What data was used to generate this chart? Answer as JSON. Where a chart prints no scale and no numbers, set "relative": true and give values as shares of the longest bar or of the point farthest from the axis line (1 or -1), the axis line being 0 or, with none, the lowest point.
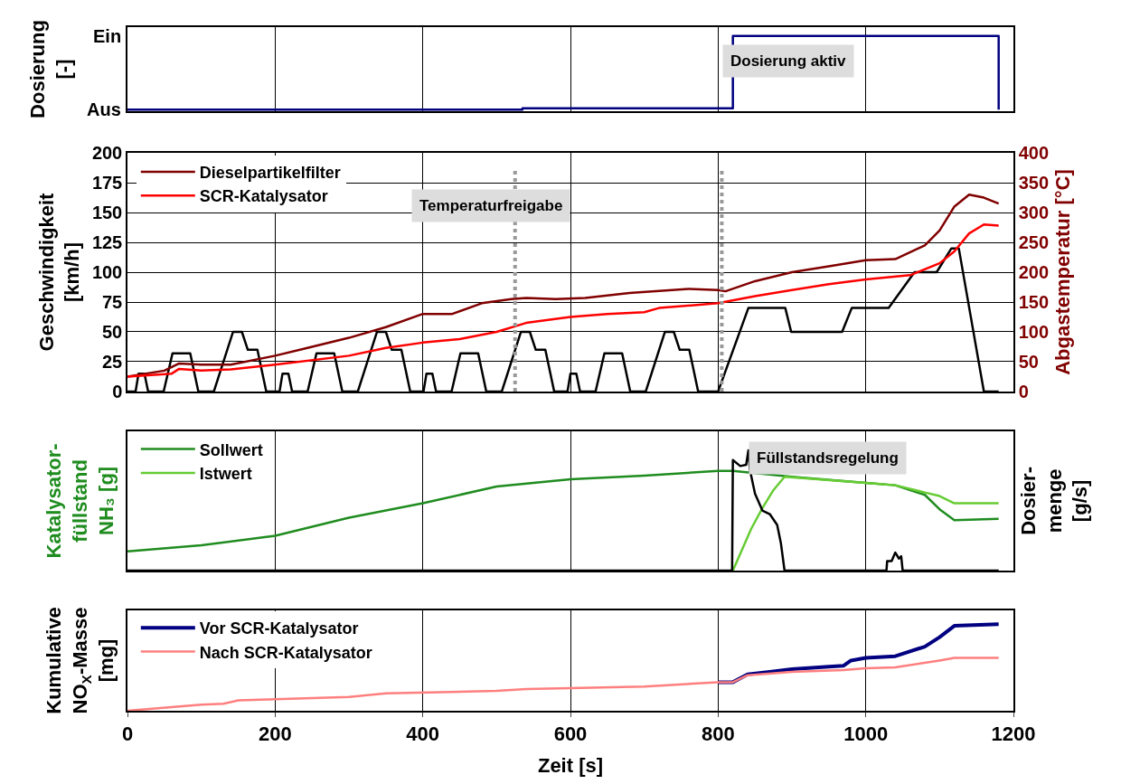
{
  "chart_data": [
    {
      "type": "step",
      "ylabel": "Dosierung\n[-]",
      "xlim": [
        0,
        1200
      ],
      "xticks": [
        {
          "value": 0,
          "label": null
        },
        {
          "value": 200,
          "label": null
        },
        {
          "value": 400,
          "label": null
        },
        {
          "value": 600,
          "label": null
        },
        {
          "value": 800,
          "label": null
        },
        {
          "value": 1000,
          "label": null
        },
        {
          "value": 1200,
          "label": null
        }
      ],
      "relative": true,
      "tick_labels": false,
      "grid": "x",
      "legend": false,
      "series": [
        {
          "color": "#000080",
          "x": [
            0,
            535,
            820,
            1180
          ],
          "values": [
            0,
            0.02,
            1,
            0
          ]
        }
      ],
      "annotations": [
        "Dosierung aktiv",
        "Aus",
        "Ein"
      ]
    },
    {
      "type": "line",
      "ylabel": "Geschwindigkeit\n[km/h]",
      "y2label": "Abgastemperatur [°C]",
      "xlim": [
        0,
        1200
      ],
      "xticks": [
        {
          "value": 0,
          "label": null
        },
        {
          "value": 200,
          "label": null
        },
        {
          "value": 400,
          "label": null
        },
        {
          "value": 600,
          "label": null
        },
        {
          "value": 800,
          "label": null
        },
        {
          "value": 1000,
          "label": null
        },
        {
          "value": 1200,
          "label": null
        }
      ],
      "ylim": [
        0,
        200
      ],
      "yticks": [
        0,
        25,
        50,
        75,
        100,
        125,
        150,
        175,
        200
      ],
      "y2lim": [
        0,
        400
      ],
      "y2ticks": [
        0,
        50,
        100,
        150,
        200,
        250,
        300,
        350,
        400
      ],
      "tick_labels": "y",
      "grid": true,
      "legend": "top left",
      "series": [
        {
          "color": "#000000",
          "x": [
            0,
            11,
            15,
            23,
            28,
            49,
            61,
            85,
            96,
            117,
            143,
            155,
            163,
            176,
            188,
            195,
            206,
            210,
            218,
            223,
            244,
            256,
            280,
            291,
            312,
            338,
            350,
            358,
            371,
            383,
            390,
            401,
            405,
            413,
            418,
            439,
            451,
            475,
            486,
            507,
            533,
            545,
            553,
            566,
            578,
            585,
            596,
            600,
            608,
            613,
            634,
            646,
            670,
            681,
            702,
            728,
            740,
            748,
            761,
            773,
            800,
            841,
            870,
            891,
            899,
            968,
            981,
            1031,
            1066,
            1096,
            1116,
            1126,
            1160,
            1180
          ],
          "values": [
            0,
            0,
            15,
            15,
            0,
            0,
            32,
            32,
            0,
            0,
            50,
            50,
            35,
            35,
            0,
            0,
            0,
            15,
            15,
            0,
            0,
            32,
            32,
            0,
            0,
            50,
            50,
            35,
            35,
            0,
            0,
            0,
            15,
            15,
            0,
            0,
            32,
            32,
            0,
            0,
            50,
            50,
            35,
            35,
            0,
            0,
            0,
            15,
            15,
            0,
            0,
            32,
            32,
            0,
            0,
            50,
            50,
            35,
            35,
            0,
            0,
            70,
            70,
            70,
            50,
            50,
            70,
            70,
            100,
            100,
            120,
            120,
            0,
            0
          ]
        },
        {
          "name": "Dieselpartikelfilter",
          "color": "#800000",
          "axis": "y2",
          "x": [
            0,
            50,
            70,
            100,
            140,
            200,
            240,
            300,
            350,
            400,
            440,
            480,
            520,
            540,
            580,
            620,
            680,
            760,
            800,
            810,
            850,
            900,
            950,
            1000,
            1040,
            1080,
            1100,
            1120,
            1140,
            1160,
            1180
          ],
          "values": [
            25,
            35,
            47,
            45,
            45,
            60,
            72,
            90,
            108,
            130,
            130,
            148,
            155,
            157,
            155,
            157,
            165,
            172,
            170,
            168,
            185,
            200,
            210,
            220,
            222,
            245,
            270,
            310,
            330,
            325,
            315
          ]
        },
        {
          "name": "SCR-Katalysator",
          "color": "#ff0000",
          "axis": "y2",
          "x": [
            0,
            60,
            70,
            100,
            140,
            200,
            300,
            350,
            400,
            450,
            500,
            540,
            600,
            650,
            700,
            720,
            800,
            850,
            900,
            950,
            1000,
            1060,
            1100,
            1120,
            1140,
            1160,
            1180
          ],
          "values": [
            25,
            30,
            38,
            35,
            37,
            45,
            60,
            73,
            82,
            88,
            100,
            115,
            125,
            130,
            133,
            140,
            148,
            160,
            170,
            180,
            188,
            195,
            215,
            235,
            265,
            280,
            278
          ]
        }
      ],
      "ref_lines": [
        {
          "axis": "x",
          "value": 525,
          "color": "#999999",
          "line_style": "dotted"
        },
        {
          "axis": "x",
          "value": 805,
          "color": "#999999",
          "line_style": "dotted"
        }
      ],
      "annotations": [
        "Temperaturfreigabe"
      ]
    },
    {
      "type": "line",
      "relative": true,
      "ylabel": "Katalysator-\nfüllstand\nNH₃ [g]",
      "y2label": "Dosier-\nmenge\n[g/s]",
      "xlim": [
        0,
        1200
      ],
      "xticks": [
        {
          "value": 0,
          "label": null
        },
        {
          "value": 200,
          "label": null
        },
        {
          "value": 400,
          "label": null
        },
        {
          "value": 600,
          "label": null
        },
        {
          "value": 800,
          "label": null
        },
        {
          "value": 1000,
          "label": null
        },
        {
          "value": 1200,
          "label": null
        }
      ],
      "tick_labels": false,
      "grid": "x",
      "legend": "top left",
      "series": [
        {
          "color": "#000000",
          "axis": "y2",
          "x": [
            0,
            819,
            820,
            830,
            838,
            841,
            843,
            850,
            860,
            870,
            880,
            885,
            890,
            1028,
            1029,
            1035,
            1040,
            1045,
            1048,
            1050,
            1180
          ],
          "values": [
            0,
            0,
            0.92,
            0.87,
            0.88,
            1,
            0.84,
            0.64,
            0.5,
            0.47,
            0.38,
            0.23,
            0,
            0,
            0.08,
            0.08,
            0.15,
            0.1,
            0.12,
            0,
            0
          ]
        },
        {
          "name": "Sollwert",
          "color": "#1f8c1f",
          "x": [
            0,
            100,
            200,
            300,
            400,
            500,
            600,
            700,
            800,
            820,
            900,
            1000,
            1040,
            1080,
            1100,
            1120,
            1180
          ],
          "values": [
            0.16,
            0.21,
            0.29,
            0.44,
            0.56,
            0.7,
            0.76,
            0.79,
            0.83,
            0.83,
            0.78,
            0.73,
            0.71,
            0.63,
            0.51,
            0.42,
            0.43
          ]
        },
        {
          "name": "Istwert",
          "color": "#66cc33",
          "x": [
            820,
            845,
            860,
            875,
            890,
            1000,
            1040,
            1080,
            1100,
            1120,
            1180
          ],
          "values": [
            0,
            0.35,
            0.52,
            0.67,
            0.78,
            0.73,
            0.71,
            0.65,
            0.62,
            0.56,
            0.56
          ]
        }
      ],
      "annotations": [
        "Füllstandsregelung"
      ]
    },
    {
      "type": "line",
      "relative": true,
      "ylabel": "Kumulative\nNO$_{X}$-Masse\n[mg]",
      "xlabel": "Zeit [s]",
      "xlim": [
        0,
        1200
      ],
      "xticks": [
        0,
        200,
        400,
        600,
        800,
        1000,
        1200
      ],
      "tick_labels": "x",
      "grid": "x",
      "legend": "top left",
      "series": [
        {
          "name": "Vor SCR-Katalysator",
          "color": "#000080",
          "x": [
            800,
            820,
            840,
            870,
            900,
            950,
            970,
            980,
            1000,
            1040,
            1080,
            1100,
            1120,
            1180
          ],
          "values": [
            0.33,
            0.33,
            0.42,
            0.45,
            0.48,
            0.51,
            0.52,
            0.58,
            0.61,
            0.63,
            0.74,
            0.85,
            0.98,
            1
          ]
        },
        {
          "name": "Nach SCR-Katalysator",
          "color": "#ff7f7f",
          "x": [
            0,
            100,
            130,
            150,
            300,
            350,
            500,
            540,
            700,
            800,
            820,
            840,
            900,
            970,
            1000,
            1040,
            1100,
            1120,
            1180
          ],
          "values": [
            0,
            0.07,
            0.08,
            0.12,
            0.16,
            0.2,
            0.23,
            0.25,
            0.28,
            0.33,
            0.33,
            0.41,
            0.45,
            0.47,
            0.49,
            0.5,
            0.58,
            0.61,
            0.61
          ]
        }
      ]
    }
  ]
}
